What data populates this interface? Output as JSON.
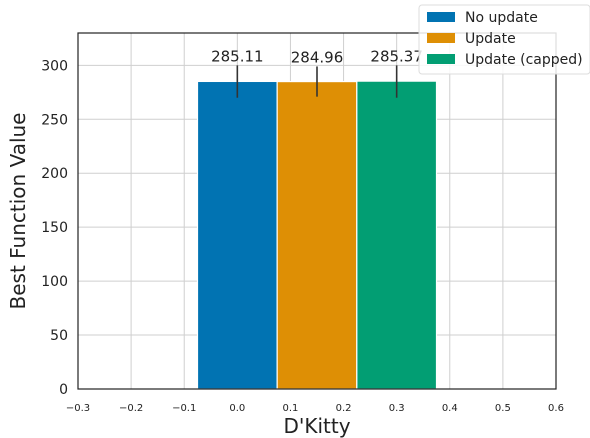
{
  "chart_data": {
    "type": "bar",
    "xlabel": "D'Kitty",
    "ylabel": "Best Function Value",
    "xlim": [
      -0.3,
      0.6
    ],
    "ylim": [
      0,
      330
    ],
    "x_ticks": [
      "−0.3",
      "−0.2",
      "−0.1",
      "0.0",
      "0.1",
      "0.2",
      "0.3",
      "0.4",
      "0.5",
      "0.6"
    ],
    "y_ticks": [
      "0",
      "50",
      "100",
      "150",
      "200",
      "250",
      "300"
    ],
    "grid": true,
    "legend_position": "top-right",
    "bar_width": 0.15,
    "series": [
      {
        "name": "No update",
        "x": 0.0,
        "value": 285.11,
        "error_low": 270,
        "error_high": 300,
        "label": "285.11",
        "color": "#0173b2"
      },
      {
        "name": "Update",
        "x": 0.15,
        "value": 284.96,
        "error_low": 271,
        "error_high": 299,
        "label": "284.96",
        "color": "#de8f05"
      },
      {
        "name": "Update (capped)",
        "x": 0.3,
        "value": 285.37,
        "error_low": 270,
        "error_high": 300,
        "label": "285.37",
        "color": "#029e73"
      }
    ]
  }
}
